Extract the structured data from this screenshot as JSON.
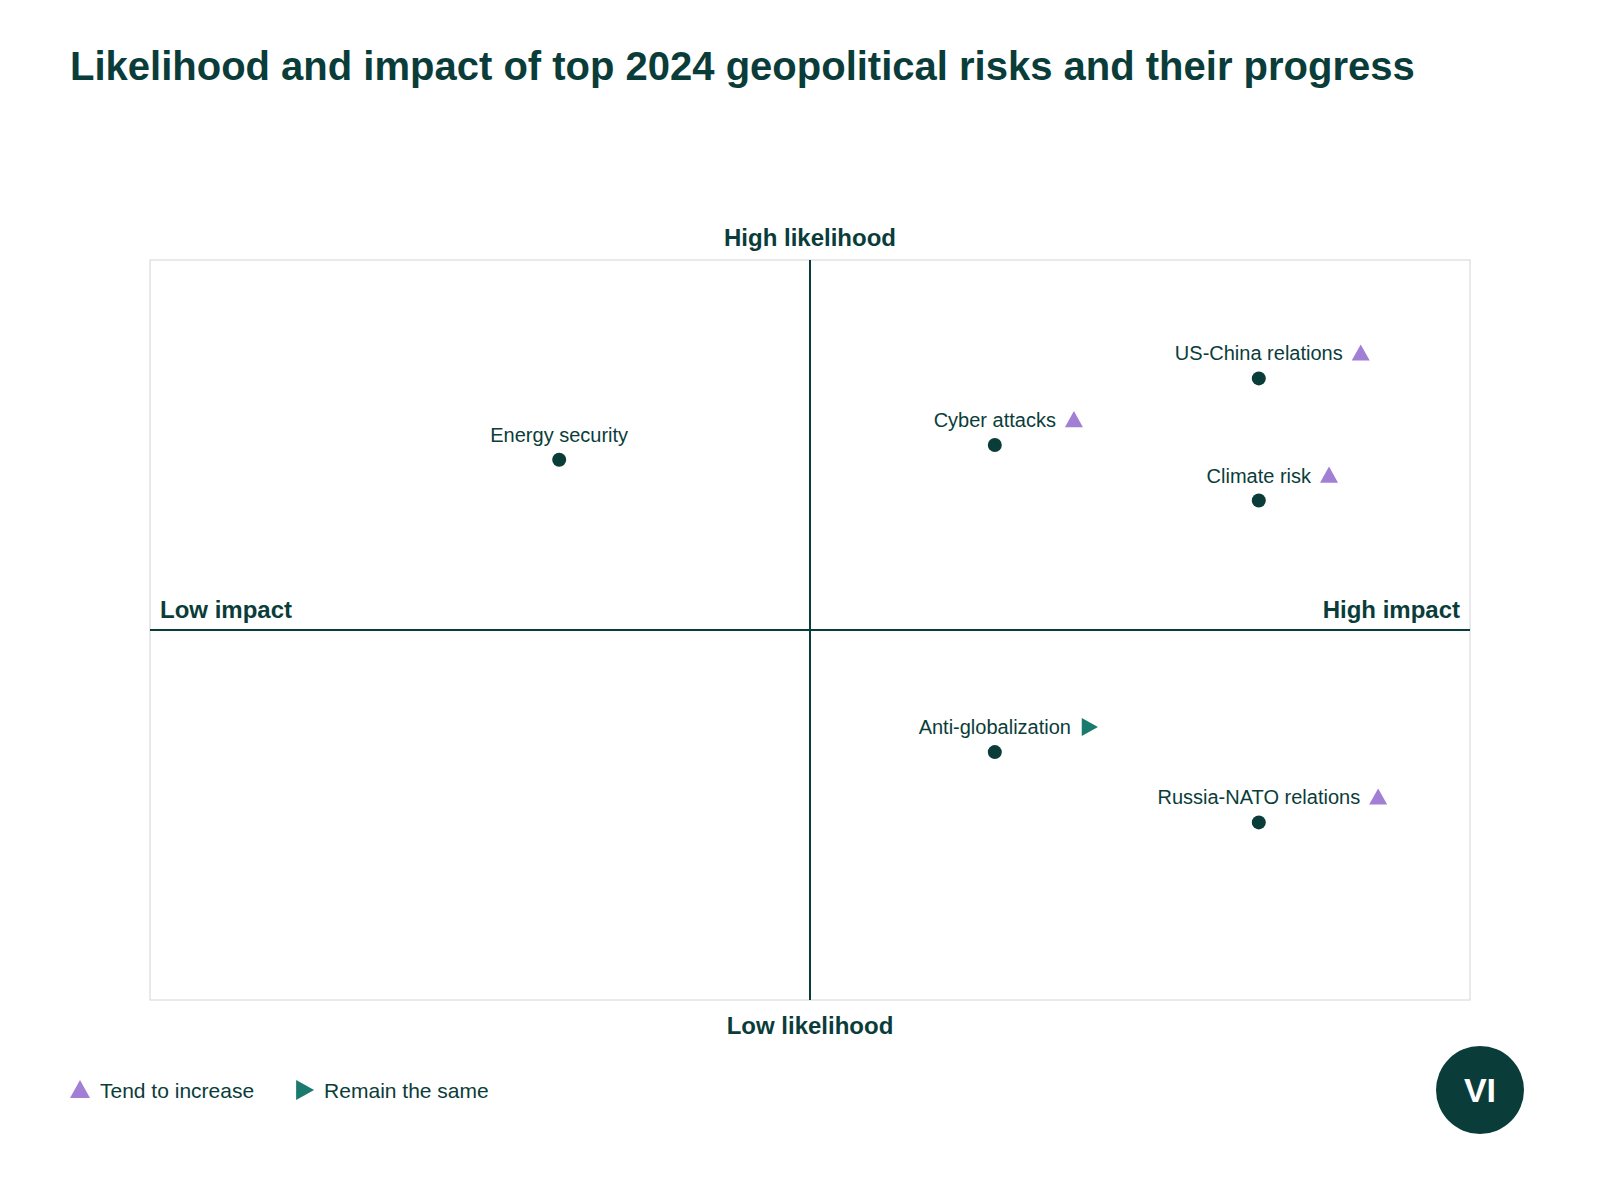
{
  "chart_data": {
    "type": "scatter",
    "title": "Likelihood and impact of top 2024 geopolitical risks and their progress",
    "x": [
      0.68,
      -0.38,
      0.28,
      0.68,
      0.28,
      0.68
    ],
    "values": [
      0.68,
      0.46,
      0.5,
      0.35,
      -0.33,
      -0.52
    ],
    "annotations": [
      "US-China relations",
      "Energy security",
      "Cyber attacks",
      "Climate risk",
      "Anti-globalization",
      "Russia-NATO relations"
    ],
    "trends": [
      "Tend to increase",
      null,
      "Tend to increase",
      "Tend to increase",
      "Remain the same",
      "Tend to increase"
    ],
    "color": "#0a3d3a",
    "legend_items": [
      {
        "name": "Tend to increase",
        "color": "#a07fd4",
        "marker": "triangle-up"
      },
      {
        "name": "Remain the same",
        "color": "#1b7a6e",
        "marker": "triangle-right"
      }
    ],
    "axis_labels": {
      "y_high": "High likelihood",
      "y_low": "Low likelihood",
      "x_low": "Low impact",
      "x_high": "High impact"
    },
    "xlim": [
      -1.0,
      1.0
    ],
    "ylim": [
      -1.0,
      1.0
    ],
    "tick_labels": false,
    "grid": false,
    "logo": "VI"
  }
}
